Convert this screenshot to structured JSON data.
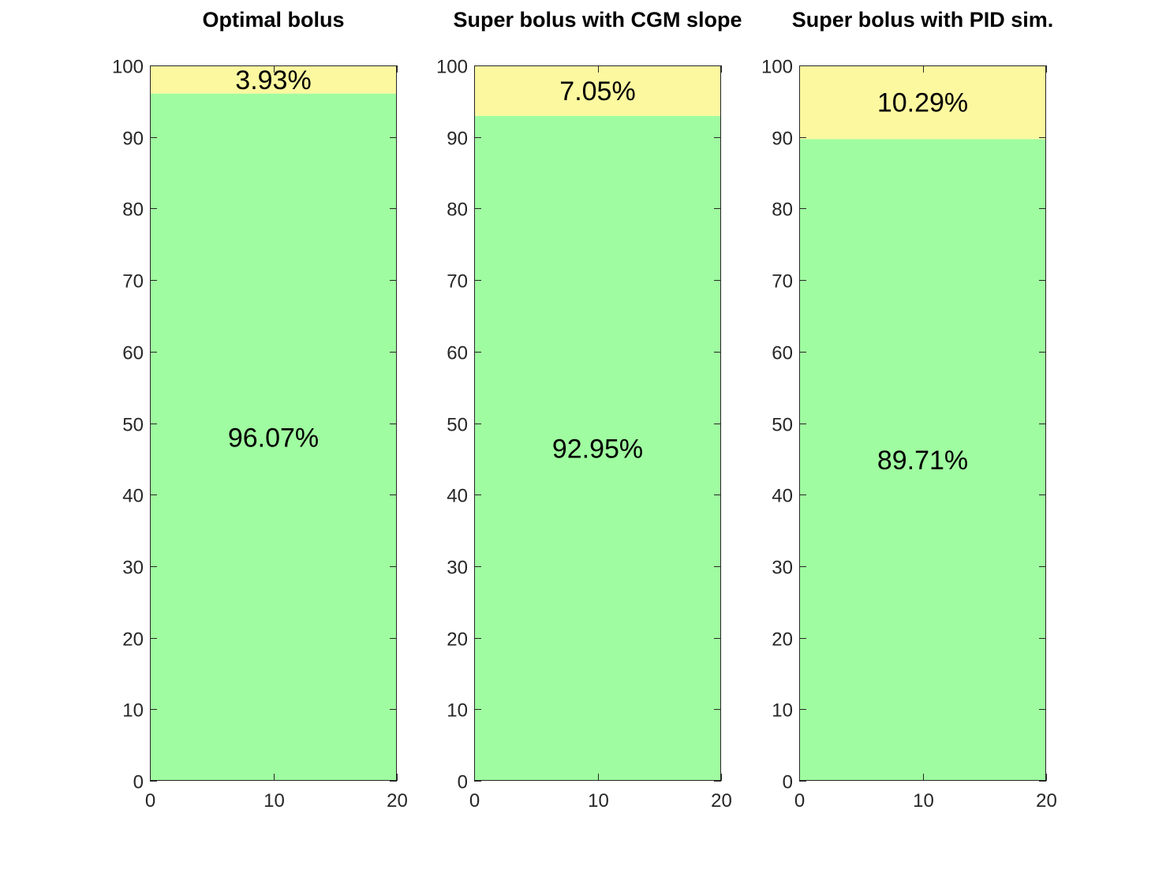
{
  "colors": {
    "in_range": "#a0fca0",
    "above_range": "#fcf8a0",
    "axis": "#262626"
  },
  "chart_data": [
    {
      "type": "bar",
      "stacked": true,
      "title": "Optimal bolus",
      "xlim": [
        0,
        20
      ],
      "ylim": [
        0,
        100
      ],
      "xticks": [
        0,
        10,
        20
      ],
      "yticks": [
        0,
        10,
        20,
        30,
        40,
        50,
        60,
        70,
        80,
        90,
        100
      ],
      "segments": [
        {
          "value": 96.07,
          "label": "96.07%",
          "color": "#a0fca0"
        },
        {
          "value": 3.93,
          "label": "3.93%",
          "color": "#fcf8a0"
        }
      ]
    },
    {
      "type": "bar",
      "stacked": true,
      "title": "Super bolus with CGM slope",
      "xlim": [
        0,
        20
      ],
      "ylim": [
        0,
        100
      ],
      "xticks": [
        0,
        10,
        20
      ],
      "yticks": [
        0,
        10,
        20,
        30,
        40,
        50,
        60,
        70,
        80,
        90,
        100
      ],
      "segments": [
        {
          "value": 92.95,
          "label": "92.95%",
          "color": "#a0fca0"
        },
        {
          "value": 7.05,
          "label": "7.05%",
          "color": "#fcf8a0"
        }
      ]
    },
    {
      "type": "bar",
      "stacked": true,
      "title": "Super bolus with PID sim.",
      "xlim": [
        0,
        20
      ],
      "ylim": [
        0,
        100
      ],
      "xticks": [
        0,
        10,
        20
      ],
      "yticks": [
        0,
        10,
        20,
        30,
        40,
        50,
        60,
        70,
        80,
        90,
        100
      ],
      "segments": [
        {
          "value": 89.71,
          "label": "89.71%",
          "color": "#a0fca0"
        },
        {
          "value": 10.29,
          "label": "10.29%",
          "color": "#fcf8a0"
        }
      ]
    }
  ]
}
